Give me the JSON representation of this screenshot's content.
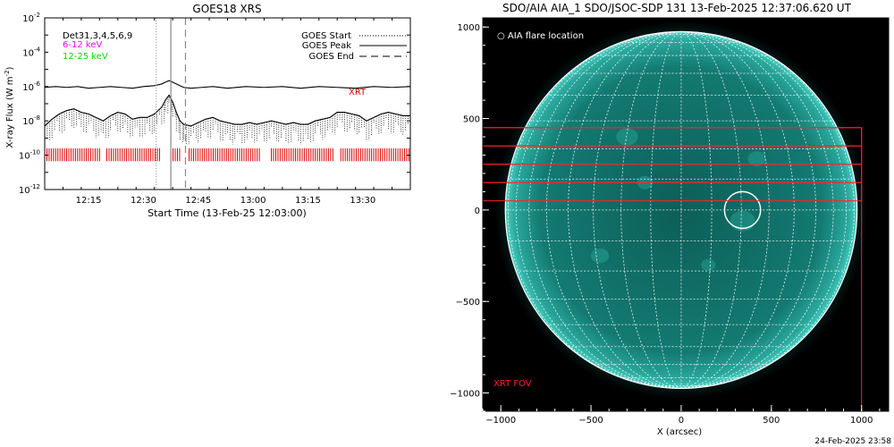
{
  "timestamp": "24-Feb-2025 23:58",
  "chart_data": [
    {
      "type": "line",
      "title": "GOES18 XRS",
      "xlabel": "Start Time (13-Feb-25 12:03:00)",
      "ylabel": "X-ray Flux (W m",
      "ylabel_exp": "-2",
      "ylabel_close": ")",
      "scale": "log",
      "xlim_minutes": [
        0,
        100
      ],
      "ylim_exp": [
        -12,
        -2
      ],
      "y_ticks": [
        {
          "exp": -12,
          "mant": "10",
          "sup": "-12"
        },
        {
          "exp": -10,
          "mant": "10",
          "sup": "-10"
        },
        {
          "exp": -8,
          "mant": "10",
          "sup": "-8"
        },
        {
          "exp": -6,
          "mant": "10",
          "sup": "-6"
        },
        {
          "exp": -4,
          "mant": "10",
          "sup": "-4"
        },
        {
          "exp": -2,
          "mant": "10",
          "sup": "-2"
        }
      ],
      "x_ticks": [
        {
          "t": 12,
          "label": "12:15"
        },
        {
          "t": 27,
          "label": "12:30"
        },
        {
          "t": 42,
          "label": "12:45"
        },
        {
          "t": 57,
          "label": "13:00"
        },
        {
          "t": 72,
          "label": "13:15"
        },
        {
          "t": 87,
          "label": "13:30"
        }
      ],
      "detectors_label": "Det31,3,4,5,6,9",
      "band_labels": [
        {
          "text": "6-12 keV",
          "color": "#ff00ff"
        },
        {
          "text": "12-25 keV",
          "color": "#00dd00"
        }
      ],
      "legend": [
        {
          "label": "GOES Start",
          "style": "dotted"
        },
        {
          "label": "GOES Peak",
          "style": "solid"
        },
        {
          "label": "GOES End",
          "style": "dashed"
        }
      ],
      "event_times": {
        "start": 30.5,
        "peak": 34.5,
        "end": 38.5
      },
      "xrt_label": "XRT",
      "xrt_intervals": [
        [
          0,
          15
        ],
        [
          17,
          31.5
        ],
        [
          34.5,
          37
        ],
        [
          39.5,
          59
        ],
        [
          62,
          79
        ],
        [
          81,
          100
        ]
      ],
      "series": [
        {
          "color": "#000000",
          "style": "solid",
          "x": [
            0,
            3,
            6,
            9,
            12,
            15,
            18,
            21,
            24,
            27,
            30,
            32,
            33,
            34,
            35,
            36,
            37,
            38,
            40,
            43,
            46,
            50,
            55,
            60,
            65,
            70,
            75,
            80,
            85,
            90,
            95,
            100
          ],
          "log_flux": [
            -6.05,
            -6.0,
            -6.05,
            -6.0,
            -6.1,
            -6.05,
            -6.0,
            -6.05,
            -6.1,
            -6.0,
            -5.95,
            -5.85,
            -5.75,
            -5.65,
            -5.75,
            -5.85,
            -5.95,
            -6.05,
            -6.1,
            -6.05,
            -6.0,
            -6.1,
            -6.0,
            -6.05,
            -6.0,
            -6.1,
            -6.0,
            -6.05,
            -6.1,
            -6.0,
            -6.05,
            -6.0
          ]
        },
        {
          "color": "#000000",
          "style": "solid",
          "x": [
            0,
            2,
            4,
            6,
            8,
            10,
            12,
            14,
            16,
            18,
            20,
            22,
            24,
            26,
            28,
            30,
            32,
            33,
            34,
            35,
            36,
            37,
            38,
            40,
            42,
            44,
            46,
            48,
            50,
            52,
            54,
            56,
            58,
            60,
            62,
            64,
            66,
            68,
            70,
            72,
            74,
            76,
            78,
            80,
            82,
            84,
            86,
            88,
            90,
            92,
            94,
            96,
            98,
            100
          ],
          "log_flux": [
            -8.3,
            -7.9,
            -7.6,
            -7.4,
            -7.3,
            -7.5,
            -7.6,
            -7.8,
            -8.0,
            -7.7,
            -7.5,
            -7.6,
            -7.9,
            -7.8,
            -7.8,
            -7.6,
            -7.2,
            -6.8,
            -6.5,
            -6.9,
            -7.5,
            -8.0,
            -8.2,
            -8.3,
            -8.1,
            -7.9,
            -7.8,
            -8.0,
            -8.1,
            -8.2,
            -8.2,
            -8.1,
            -8.2,
            -8.1,
            -8.0,
            -8.1,
            -8.2,
            -8.1,
            -8.2,
            -8.2,
            -8.0,
            -7.9,
            -7.8,
            -7.5,
            -7.5,
            -7.6,
            -7.7,
            -8.0,
            -7.8,
            -7.6,
            -7.5,
            -7.6,
            -7.7,
            -7.7
          ]
        }
      ]
    },
    {
      "type": "scatter",
      "title": "SDO/AIA AIA_1 SDO/JSOC-SDP 131 13-Feb-2025 12:37:06.620 UT",
      "xlabel": "X (arcsec)",
      "ylabel": "",
      "xlim": [
        -1100,
        1150
      ],
      "ylim": [
        -1100,
        1050
      ],
      "x_ticks": [
        -1000,
        -500,
        0,
        500,
        1000
      ],
      "y_ticks": [
        1000,
        500,
        0,
        -500,
        -1000
      ],
      "x_tick_labels": [
        "−1000",
        "−500",
        "0",
        "500",
        "1000"
      ],
      "y_tick_labels": [
        "1000",
        "500",
        "0",
        "−500",
        "−1000"
      ],
      "solar_radius_arcsec": 975,
      "disk_color": "#0f6e68",
      "flare_label": "AIA flare location",
      "flare_location": [
        340,
        0
      ],
      "flare_circle_radius": 100,
      "xrt_fov_label": "XRT FOV",
      "xrt_fov_box": {
        "x": [
          -1100,
          1000
        ],
        "y": [
          -1100,
          450
        ]
      },
      "xrt_stripes": [
        [
          350,
          450
        ],
        [
          250,
          350
        ],
        [
          150,
          250
        ],
        [
          50,
          150
        ]
      ]
    }
  ]
}
